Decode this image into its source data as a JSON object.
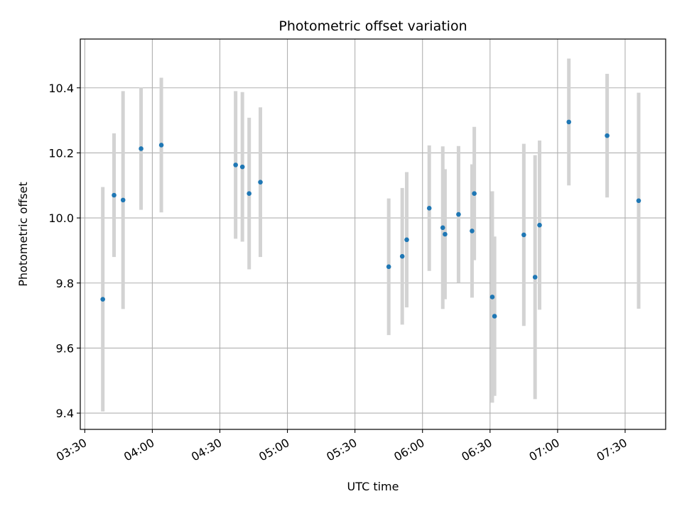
{
  "chart_data": {
    "type": "scatter",
    "title": "Photometric offset variation",
    "xlabel": "UTC time",
    "ylabel": "Photometric offset",
    "grid": true,
    "x_tick_labels": [
      "03:30",
      "04:00",
      "04:30",
      "05:00",
      "05:30",
      "06:00",
      "06:30",
      "07:00",
      "07:30"
    ],
    "y_tick_labels": [
      "9.4",
      "9.6",
      "9.8",
      "10.0",
      "10.2",
      "10.4"
    ],
    "x_ticks": [
      "03:30",
      "04:00",
      "04:30",
      "05:00",
      "05:30",
      "06:00",
      "06:30",
      "07:00",
      "07:30"
    ],
    "y_ticks": [
      9.4,
      9.6,
      9.8,
      10.0,
      10.2,
      10.4
    ],
    "xlim": [
      "03:28",
      "07:48"
    ],
    "ylim": [
      9.35,
      10.55
    ],
    "colors": {
      "marker": "#1f77b4",
      "errorbar": "#d3d3d3",
      "grid": "#b0b0b0"
    },
    "points": [
      {
        "x": "03:38",
        "y": 9.75,
        "yerr": 0.345
      },
      {
        "x": "03:43",
        "y": 10.07,
        "yerr": 0.19
      },
      {
        "x": "03:47",
        "y": 10.055,
        "yerr": 0.335
      },
      {
        "x": "03:55",
        "y": 10.213,
        "yerr": 0.188
      },
      {
        "x": "04:04",
        "y": 10.224,
        "yerr": 0.207
      },
      {
        "x": "04:37",
        "y": 10.163,
        "yerr": 0.227
      },
      {
        "x": "04:40",
        "y": 10.157,
        "yerr": 0.23
      },
      {
        "x": "04:43",
        "y": 10.075,
        "yerr": 0.233
      },
      {
        "x": "04:48",
        "y": 10.11,
        "yerr": 0.23
      },
      {
        "x": "05:45",
        "y": 9.85,
        "yerr": 0.21
      },
      {
        "x": "05:51",
        "y": 9.882,
        "yerr": 0.21
      },
      {
        "x": "05:53",
        "y": 9.933,
        "yerr": 0.208
      },
      {
        "x": "06:03",
        "y": 10.03,
        "yerr": 0.193
      },
      {
        "x": "06:09",
        "y": 9.97,
        "yerr": 0.25
      },
      {
        "x": "06:10",
        "y": 9.95,
        "yerr": 0.2
      },
      {
        "x": "06:16",
        "y": 10.011,
        "yerr": 0.21
      },
      {
        "x": "06:22",
        "y": 9.96,
        "yerr": 0.205
      },
      {
        "x": "06:23",
        "y": 10.075,
        "yerr": 0.205
      },
      {
        "x": "06:31",
        "y": 9.757,
        "yerr": 0.325
      },
      {
        "x": "06:32",
        "y": 9.698,
        "yerr": 0.245
      },
      {
        "x": "06:45",
        "y": 9.948,
        "yerr": 0.28
      },
      {
        "x": "06:50",
        "y": 9.818,
        "yerr": 0.375
      },
      {
        "x": "06:52",
        "y": 9.978,
        "yerr": 0.26
      },
      {
        "x": "07:05",
        "y": 10.295,
        "yerr": 0.195
      },
      {
        "x": "07:22",
        "y": 10.253,
        "yerr": 0.19
      },
      {
        "x": "07:36",
        "y": 10.053,
        "yerr": 0.332
      }
    ]
  }
}
